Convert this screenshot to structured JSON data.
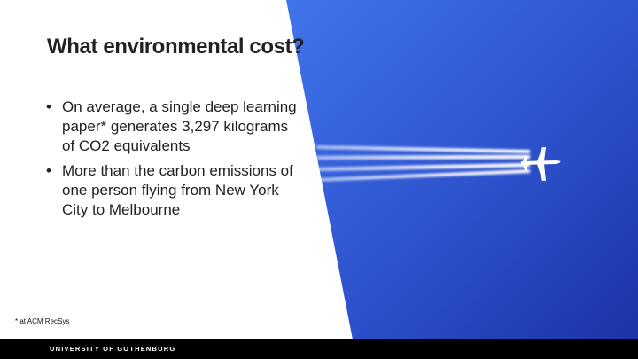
{
  "slide": {
    "title": "What environmental cost?",
    "bullets": [
      "On average, a single deep learning paper* generates 3,297 kilograms of CO2 equivalents",
      "More than the carbon emissions of one person flying from New York City to Melbourne"
    ],
    "bullet_marker": "•",
    "footnote": "* at ACM RecSys"
  },
  "footer": {
    "university": "UNIVERSITY OF GOTHENBURG"
  },
  "colors": {
    "sky_light": "#3f6ee8",
    "sky_dark": "#1c34a8",
    "text": "#222222",
    "footer_bg": "#000000"
  }
}
